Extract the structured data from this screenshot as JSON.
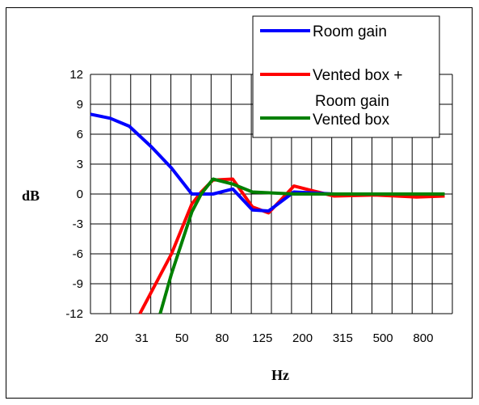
{
  "chart_data": {
    "type": "line",
    "title": "",
    "xlabel": "Hz",
    "ylabel": "dB",
    "x_ticks": [
      "20",
      "31",
      "50",
      "80",
      "125",
      "200",
      "315",
      "500",
      "800"
    ],
    "y_ticks": [
      12,
      9,
      6,
      3,
      0,
      -3,
      -6,
      -9,
      -12
    ],
    "ylim": [
      -12,
      12
    ],
    "x_scale": "log",
    "xlim": [
      20,
      1200
    ],
    "grid": true,
    "legend_position": "top-right",
    "series": [
      {
        "name": "Room gain",
        "color": "#0000ff",
        "x": [
          20,
          25,
          31,
          40,
          50,
          63,
          70,
          80,
          100,
          125,
          150,
          200,
          315,
          1100
        ],
        "y": [
          8.0,
          7.6,
          6.8,
          4.7,
          2.6,
          0.0,
          0.0,
          0.0,
          0.5,
          -1.6,
          -1.7,
          0.2,
          0.0,
          0.0
        ]
      },
      {
        "name": "Vented box + Room gain",
        "color": "#ff0000",
        "x": [
          35,
          50,
          63,
          70,
          80,
          100,
          125,
          150,
          200,
          250,
          315,
          500,
          800,
          1100
        ],
        "y": [
          -12.0,
          -6.0,
          -1.0,
          0.2,
          1.4,
          1.5,
          -1.3,
          -1.9,
          0.8,
          0.3,
          -0.2,
          -0.1,
          -0.3,
          -0.2
        ]
      },
      {
        "name": "Vented box",
        "color": "#008000",
        "x": [
          44,
          50,
          63,
          70,
          80,
          100,
          125,
          200,
          315,
          500,
          800,
          1100
        ],
        "y": [
          -12.0,
          -8.0,
          -1.8,
          0.0,
          1.5,
          1.0,
          0.2,
          0.0,
          0.0,
          0.0,
          0.0,
          0.0
        ]
      }
    ]
  }
}
